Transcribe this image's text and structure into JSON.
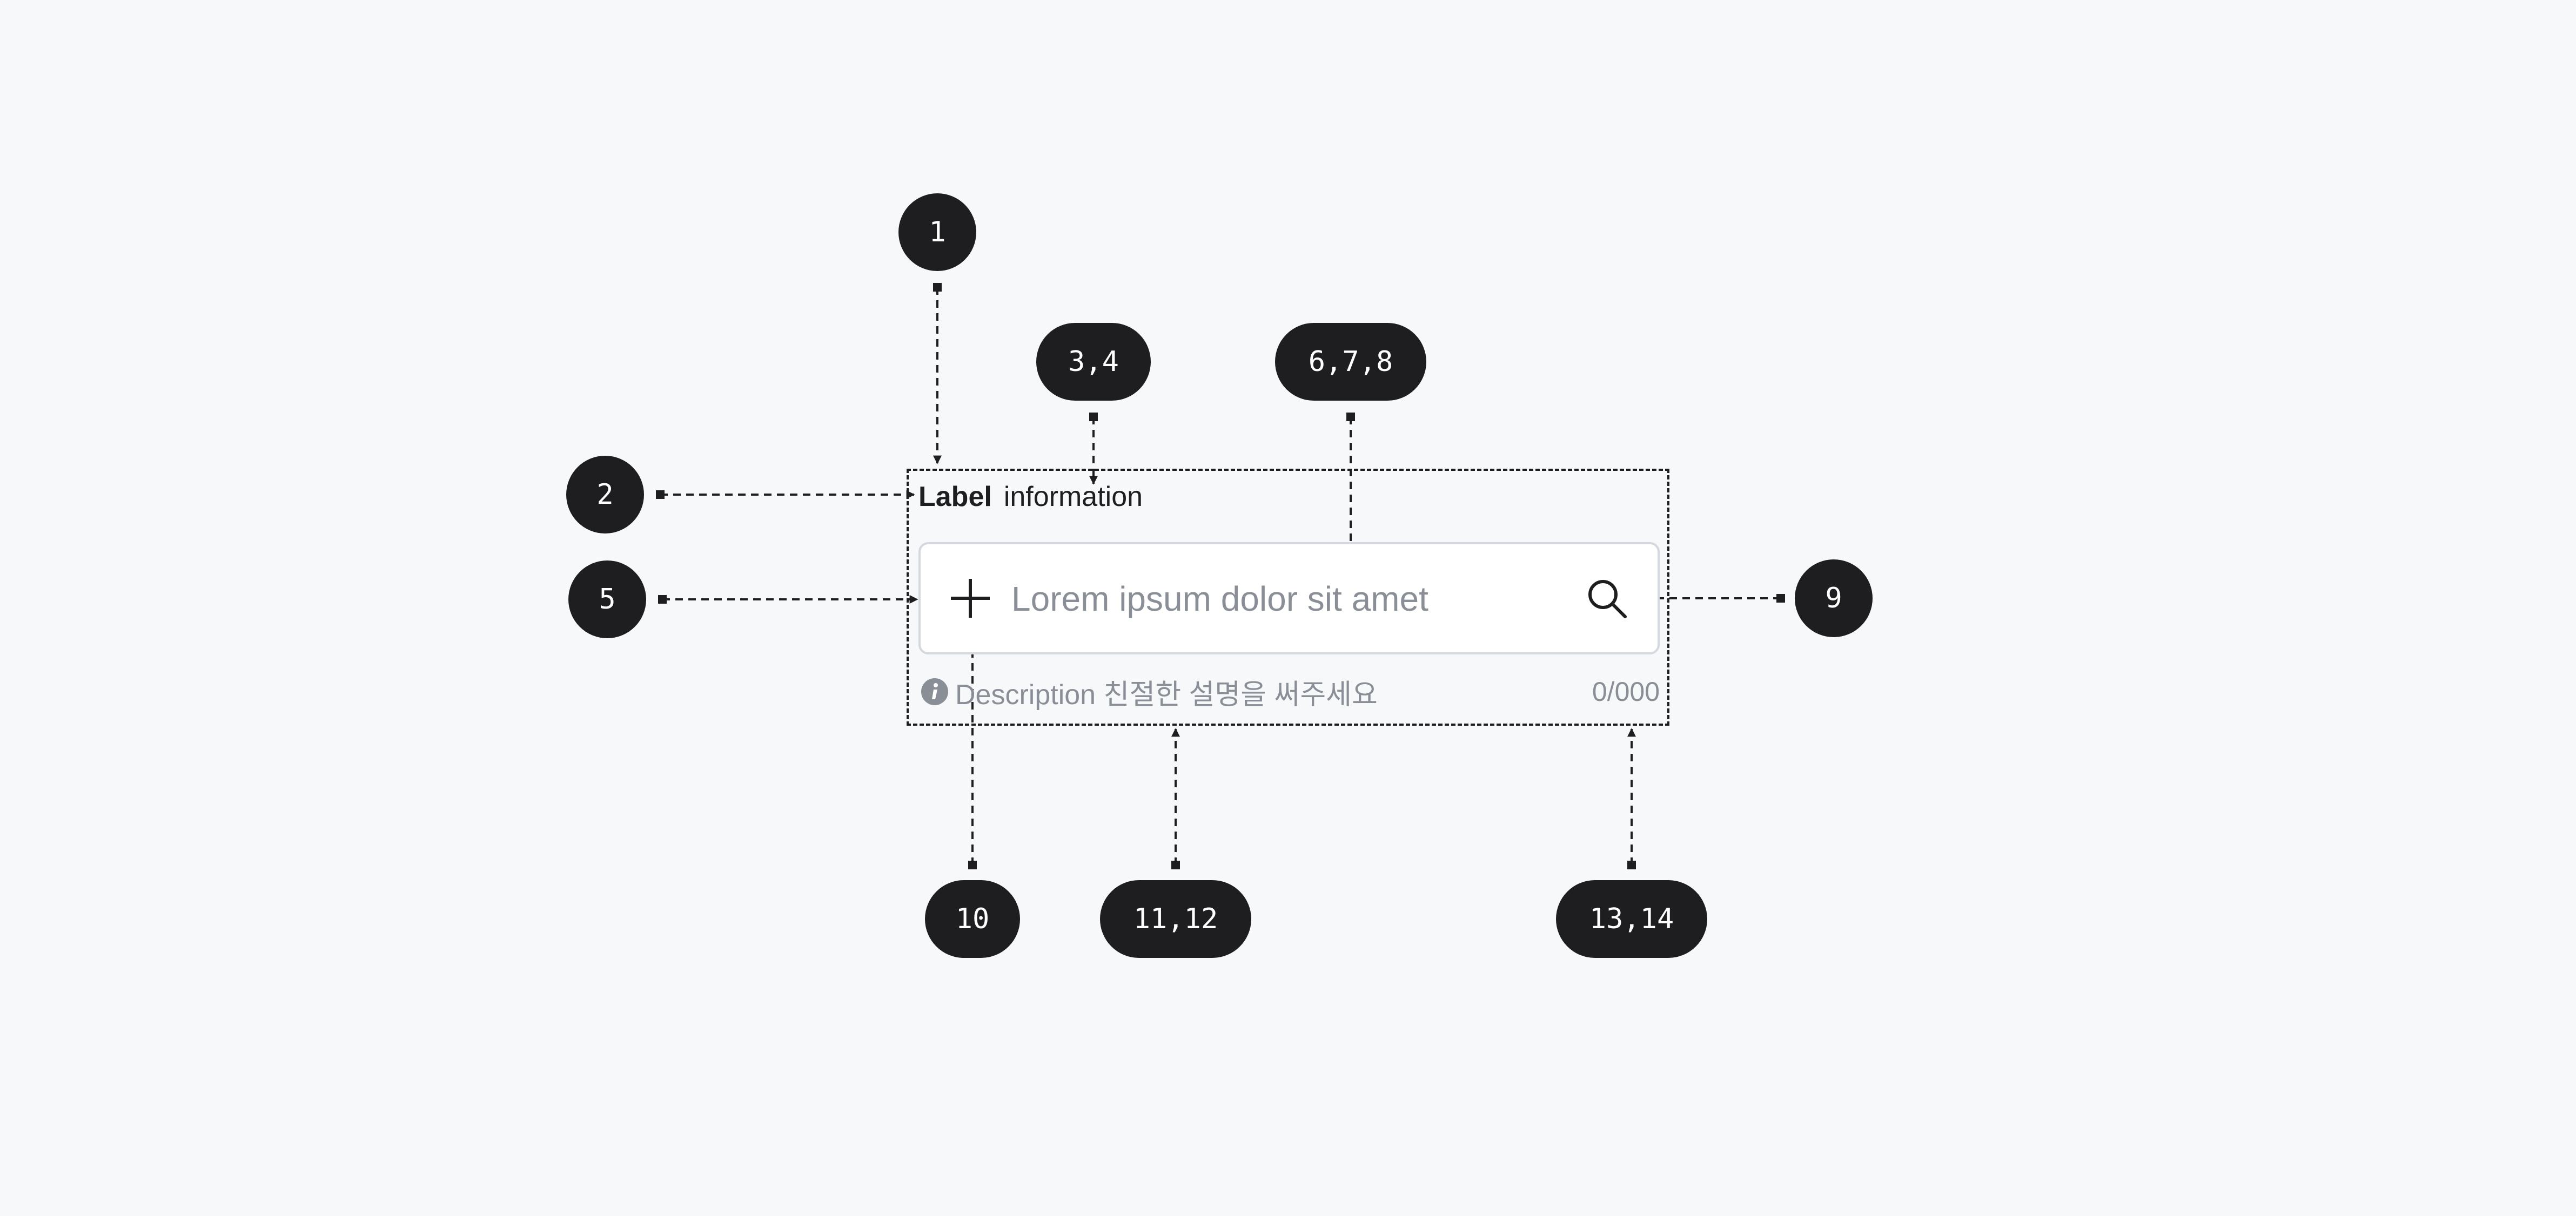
{
  "component": {
    "label": {
      "strong": "Label",
      "text": "information"
    },
    "input": {
      "placeholder": "Lorem ipsum dolor sit amet",
      "value": ""
    },
    "leading_icon": "plus-icon",
    "trailing_icon": "search-icon",
    "description": {
      "icon": "info-icon",
      "text": "Description 친절한 설명을 써주세요"
    },
    "counter": "0/000"
  },
  "markers": [
    "1",
    "2",
    "3,4",
    "5",
    "6,7,8",
    "9",
    "10",
    "11,12",
    "13,14"
  ],
  "colors": {
    "background": "#f7f8fa",
    "marker": "#1e1e20",
    "marker_text": "#ffffff",
    "field_border": "#d5d8de",
    "muted_text": "#8a8e96"
  }
}
